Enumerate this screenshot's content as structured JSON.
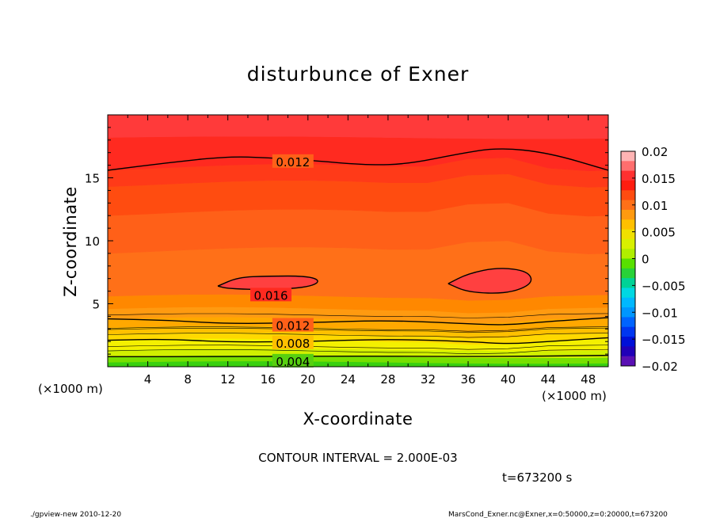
{
  "chart_data": {
    "type": "contour",
    "title": "disturbunce of Exner",
    "xlabel": "X-coordinate",
    "ylabel": "Z-coordinate",
    "x_unit_label": "(×1000 m)",
    "y_unit_label": "(×1000 m)",
    "xlim": [
      0,
      50
    ],
    "ylim": [
      0,
      20
    ],
    "x_ticks": [
      4,
      8,
      12,
      16,
      20,
      24,
      28,
      32,
      36,
      40,
      44,
      48
    ],
    "y_ticks": [
      5,
      10,
      15
    ],
    "contour_interval_text": "CONTOUR INTERVAL = 2.000E-03",
    "contour_interval": 0.002,
    "contours": [
      {
        "level": 0.004,
        "label": "0.004",
        "points": [
          [
            0,
            0.8
          ],
          [
            12,
            0.8
          ],
          [
            25,
            0.85
          ],
          [
            38,
            0.8
          ],
          [
            50,
            0.9
          ]
        ]
      },
      {
        "level": 0.008,
        "label": "0.008",
        "points": [
          [
            0,
            2.1
          ],
          [
            6,
            2.2
          ],
          [
            12,
            1.95
          ],
          [
            20,
            2.0
          ],
          [
            28,
            2.2
          ],
          [
            36,
            2.0
          ],
          [
            40,
            1.8
          ],
          [
            44,
            2.0
          ],
          [
            50,
            2.3
          ]
        ]
      },
      {
        "level": 0.012,
        "label": "0.012",
        "points": [
          [
            0,
            3.8
          ],
          [
            6,
            3.7
          ],
          [
            12,
            3.4
          ],
          [
            20,
            3.5
          ],
          [
            28,
            3.7
          ],
          [
            36,
            3.4
          ],
          [
            40,
            3.3
          ],
          [
            44,
            3.6
          ],
          [
            50,
            3.9
          ]
        ]
      },
      {
        "level": 0.012,
        "label": "0.012",
        "points": [
          [
            0,
            15.6
          ],
          [
            6,
            16.2
          ],
          [
            12,
            16.7
          ],
          [
            16,
            16.6
          ],
          [
            20,
            16.4
          ],
          [
            26,
            16.0
          ],
          [
            30,
            16.1
          ],
          [
            35,
            16.9
          ],
          [
            39,
            17.4
          ],
          [
            44,
            17.0
          ],
          [
            50,
            15.6
          ]
        ]
      },
      {
        "level": 0.016,
        "label": "0.016",
        "points": [
          [
            11,
            6.4
          ],
          [
            13,
            7.1
          ],
          [
            16,
            7.2
          ],
          [
            20,
            7.2
          ],
          [
            21.3,
            6.8
          ],
          [
            20,
            6.3
          ],
          [
            16,
            6.1
          ],
          [
            12,
            6.2
          ]
        ]
      },
      {
        "level": 0.016,
        "label": "",
        "points": [
          [
            34,
            6.6
          ],
          [
            36,
            7.4
          ],
          [
            39,
            7.9
          ],
          [
            42,
            7.6
          ],
          [
            42.5,
            6.6
          ],
          [
            40,
            5.8
          ],
          [
            36,
            5.9
          ]
        ]
      }
    ],
    "filled_levels": [
      -0.02,
      -0.015,
      -0.01,
      -0.005,
      0,
      0.005,
      0.01,
      0.015,
      0.02
    ],
    "colorbar": {
      "labels": [
        "0.02",
        "0.015",
        "0.01",
        "0.005",
        "0",
        "−0.005",
        "−0.01",
        "−0.015",
        "−0.02"
      ],
      "colors_top_to_bottom": [
        "#ffb4b4",
        "#ff6e6e",
        "#ff3030",
        "#ff1c10",
        "#ff4c10",
        "#ff7018",
        "#ff9a10",
        "#ffc000",
        "#f0e000",
        "#d8f000",
        "#b0ee00",
        "#58e000",
        "#28d238",
        "#00d296",
        "#00d8e2",
        "#00b8ff",
        "#0096ff",
        "#0064ff",
        "#0036f0",
        "#0010d8",
        "#2000b8",
        "#5a10b4"
      ]
    },
    "time_label": "t=673200 s"
  },
  "footer": {
    "left": "./gpview-new   2010-12-20",
    "right": "MarsCond_Exner.nc@Exner,x=0:50000,z=0:20000,t=673200"
  },
  "colors": {
    "bands": [
      "#3ad010",
      "#78e000",
      "#d2f000",
      "#f4f000",
      "#ffd800",
      "#ffc000",
      "#ffa800",
      "#ff9a10",
      "#ff8800",
      "#ff7018",
      "#ff6018",
      "#ff4c10",
      "#ff3a18",
      "#ff2a20",
      "#ff3a3a"
    ]
  }
}
